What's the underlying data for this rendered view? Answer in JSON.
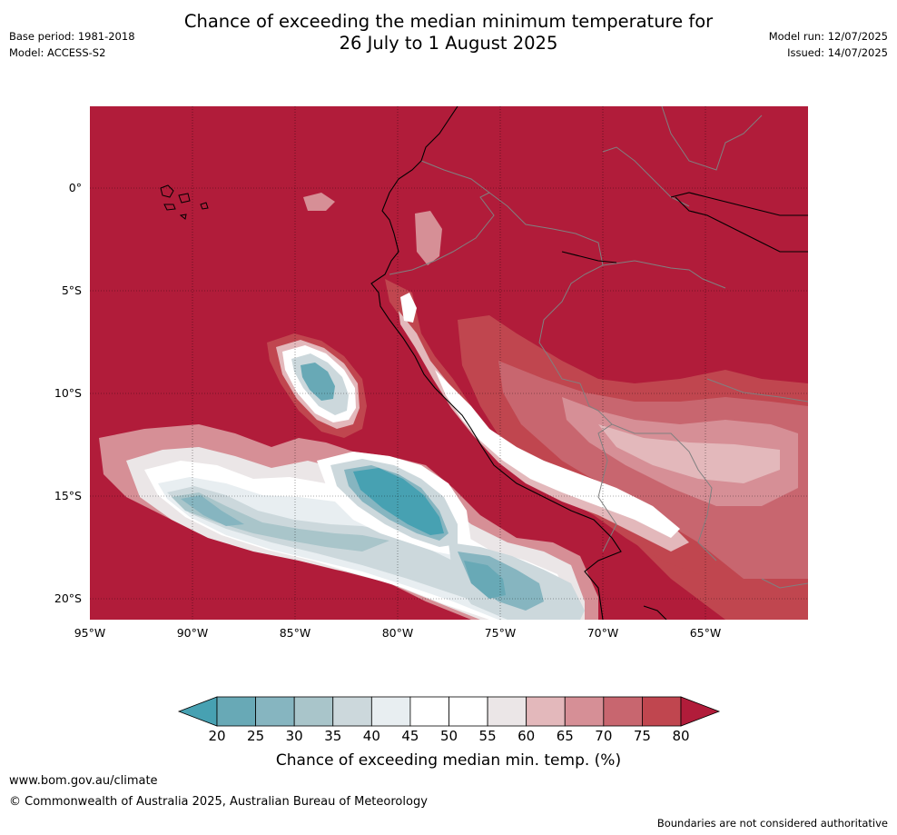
{
  "header": {
    "base_period": "Base period: 1981-2018",
    "model": "Model: ACCESS-S2",
    "title_line1": "Chance of exceeding the median minimum temperature for",
    "title_line2": "26 July to 1 August 2025",
    "model_run": "Model run: 12/07/2025",
    "issued": "Issued: 14/07/2025"
  },
  "map": {
    "lat_labels": [
      "0°",
      "5°S",
      "10°S",
      "15°S",
      "20°S"
    ],
    "lon_labels": [
      "95°W",
      "90°W",
      "85°W",
      "80°W",
      "75°W",
      "70°W",
      "65°W"
    ],
    "colors": {
      "above_80": "#b11c3a",
      "75_80": "#c0464f",
      "70_75": "#c8666f",
      "65_70": "#d68f96",
      "60_65": "#e3b8bb",
      "55_60": "#ebe6e7",
      "45_55": "#ffffff",
      "40_45": "#e8eef1",
      "35_40": "#ccd8dc",
      "30_35": "#a9c5ca",
      "25_30": "#86b5c0",
      "20_25": "#68a9b6",
      "below_20": "#47a1b2",
      "coastline": "#000000",
      "border": "#808080"
    }
  },
  "colorbar": {
    "ticks": [
      "20",
      "25",
      "30",
      "35",
      "40",
      "45",
      "50",
      "55",
      "60",
      "65",
      "70",
      "75",
      "80"
    ],
    "colors": [
      "#47a1b2",
      "#68a9b6",
      "#86b5c0",
      "#a9c5ca",
      "#ccd8dc",
      "#e8eef1",
      "#ffffff",
      "#ffffff",
      "#ebe6e7",
      "#e3b8bb",
      "#d68f96",
      "#c8666f",
      "#c0464f",
      "#b11c3a"
    ],
    "label": "Chance of exceeding median min. temp. (%)"
  },
  "footer": {
    "url": "www.bom.gov.au/climate",
    "copyright": "© Commonwealth of Australia 2025, Australian Bureau of Meteorology",
    "disclaimer": "Boundaries are not considered authoritative"
  }
}
